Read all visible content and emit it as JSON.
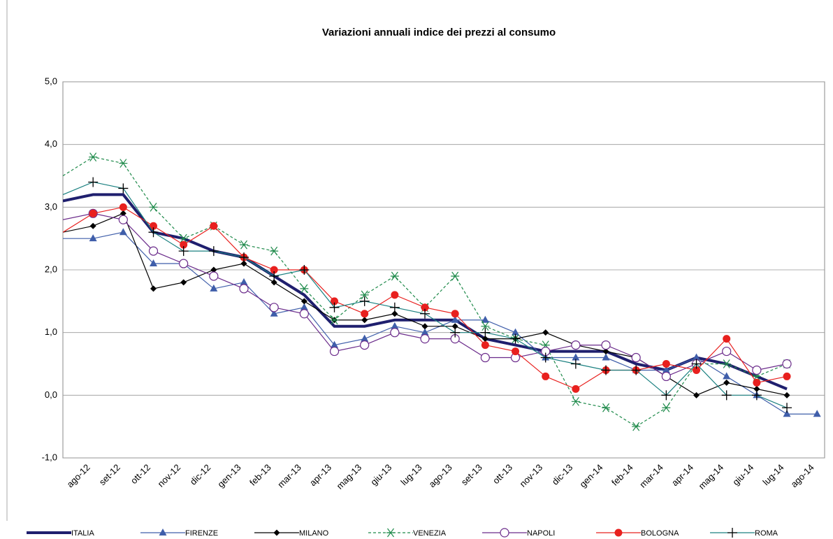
{
  "chart_data": {
    "type": "line",
    "title": "Variazioni annuali indice dei prezzi al consumo",
    "categories": [
      null,
      "ago-12",
      "set-12",
      "ott-12",
      "nov-12",
      "dic-12",
      "gen-13",
      "feb-13",
      "mar-13",
      "apr-13",
      "mag-13",
      "giu-13",
      "lug-13",
      "ago-13",
      "set-13",
      "ott-13",
      "nov-13",
      "dic-13",
      "gen-14",
      "feb-14",
      "mar-14",
      "apr-14",
      "mag-14",
      "giu-14",
      "lug-14",
      "ago-14"
    ],
    "ylim": [
      -1,
      5
    ],
    "yticks": [
      {
        "value": -1,
        "label": "-1,0"
      },
      {
        "value": 0,
        "label": "0,0"
      },
      {
        "value": 1,
        "label": "1,0"
      },
      {
        "value": 2,
        "label": "2,0"
      },
      {
        "value": 3,
        "label": "3,0"
      },
      {
        "value": 4,
        "label": "4,0"
      },
      {
        "value": 5,
        "label": "5,0"
      }
    ],
    "grid": true,
    "legend": "bottom",
    "series": [
      {
        "name": "ITALIA",
        "color": "#1f1f6e",
        "marker": "none",
        "width": 4,
        "dashed": false,
        "values": [
          3.1,
          3.2,
          3.2,
          2.6,
          2.5,
          2.3,
          2.2,
          1.9,
          1.6,
          1.1,
          1.1,
          1.2,
          1.2,
          1.2,
          0.9,
          0.8,
          0.7,
          0.7,
          0.7,
          0.5,
          0.4,
          0.6,
          0.5,
          0.3,
          0.1,
          null
        ]
      },
      {
        "name": "FIRENZE",
        "color": "#3f5eaa",
        "marker": "triangle",
        "width": 1.2,
        "dashed": false,
        "values": [
          2.5,
          2.5,
          2.6,
          2.1,
          2.1,
          1.7,
          1.8,
          1.3,
          1.4,
          0.8,
          0.9,
          1.1,
          1.0,
          1.2,
          1.2,
          1.0,
          0.6,
          0.6,
          0.6,
          0.4,
          0.4,
          0.6,
          0.3,
          0.0,
          -0.3,
          -0.3
        ]
      },
      {
        "name": "MILANO",
        "color": "#000000",
        "marker": "diamond",
        "width": 1.2,
        "dashed": false,
        "values": [
          2.6,
          2.7,
          2.9,
          1.7,
          1.8,
          2.0,
          2.1,
          1.8,
          1.5,
          1.2,
          1.2,
          1.3,
          1.1,
          1.1,
          0.9,
          0.9,
          1.0,
          0.8,
          0.7,
          0.6,
          0.3,
          0.0,
          0.2,
          0.1,
          0.0,
          null
        ]
      },
      {
        "name": "VENEZIA",
        "color": "#1e8a4a",
        "marker": "star",
        "width": 1.2,
        "dashed": true,
        "values": [
          3.5,
          3.8,
          3.7,
          3.0,
          2.5,
          2.7,
          2.4,
          2.3,
          1.7,
          1.2,
          1.6,
          1.9,
          1.4,
          1.9,
          1.1,
          0.9,
          0.8,
          -0.1,
          -0.2,
          -0.5,
          -0.2,
          0.5,
          0.5,
          0.3,
          0.5,
          null
        ]
      },
      {
        "name": "NAPOLI",
        "color": "#6a2a8a",
        "marker": "circle-open",
        "width": 1.2,
        "dashed": false,
        "values": [
          2.8,
          2.9,
          2.8,
          2.3,
          2.1,
          1.9,
          1.7,
          1.4,
          1.3,
          0.7,
          0.8,
          1.0,
          0.9,
          0.9,
          0.6,
          0.6,
          0.7,
          0.8,
          0.8,
          0.6,
          0.3,
          0.5,
          0.7,
          0.4,
          0.5,
          null
        ]
      },
      {
        "name": "BOLOGNA",
        "color": "#e8201e",
        "marker": "circle",
        "width": 1.2,
        "dashed": false,
        "values": [
          2.6,
          2.9,
          3.0,
          2.7,
          2.4,
          2.7,
          2.2,
          2.0,
          2.0,
          1.5,
          1.3,
          1.6,
          1.4,
          1.3,
          0.8,
          0.7,
          0.3,
          0.1,
          0.4,
          0.4,
          0.5,
          0.4,
          0.9,
          0.2,
          0.3,
          null
        ]
      },
      {
        "name": "ROMA",
        "color": "#1a8080",
        "marker": "plus",
        "width": 1.2,
        "dashed": false,
        "values": [
          3.2,
          3.4,
          3.3,
          2.6,
          2.3,
          2.3,
          2.2,
          1.9,
          2.0,
          1.4,
          1.5,
          1.4,
          1.3,
          1.0,
          1.0,
          0.9,
          0.6,
          0.5,
          0.4,
          0.4,
          0.0,
          0.5,
          0.0,
          0.0,
          -0.2,
          null
        ]
      }
    ]
  }
}
